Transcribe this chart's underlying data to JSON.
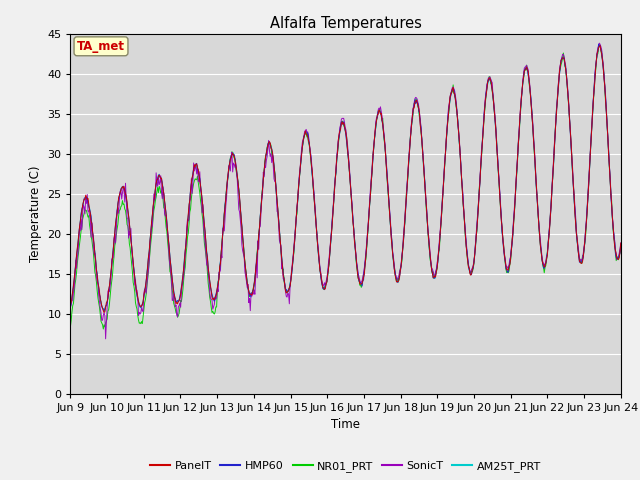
{
  "title": "Alfalfa Temperatures",
  "ylabel": "Temperature (C)",
  "xlabel": "Time",
  "ylim": [
    0,
    45
  ],
  "series": [
    "PanelT",
    "HMP60",
    "NR01_PRT",
    "SonicT",
    "AM25T_PRT"
  ],
  "colors": [
    "#cc0000",
    "#2222cc",
    "#00cc00",
    "#9900bb",
    "#00cccc"
  ],
  "annotation": "TA_met",
  "annotation_color": "#cc0000",
  "annotation_bg": "#ffffcc",
  "tick_labels": [
    "Jun 9",
    "Jun 10",
    "Jun 11",
    "Jun 12",
    "Jun 13",
    "Jun 14",
    "Jun 15",
    "Jun 16",
    "Jun 17",
    "Jun 18",
    "Jun 19",
    "Jun 20",
    "Jun 21",
    "Jun 22",
    "Jun 23",
    "Jun 24"
  ],
  "bg_color": "#d8d8d8",
  "fig_bg": "#f0f0f0",
  "grid_color": "#ffffff",
  "n_days": 15,
  "n_per_day": 48
}
